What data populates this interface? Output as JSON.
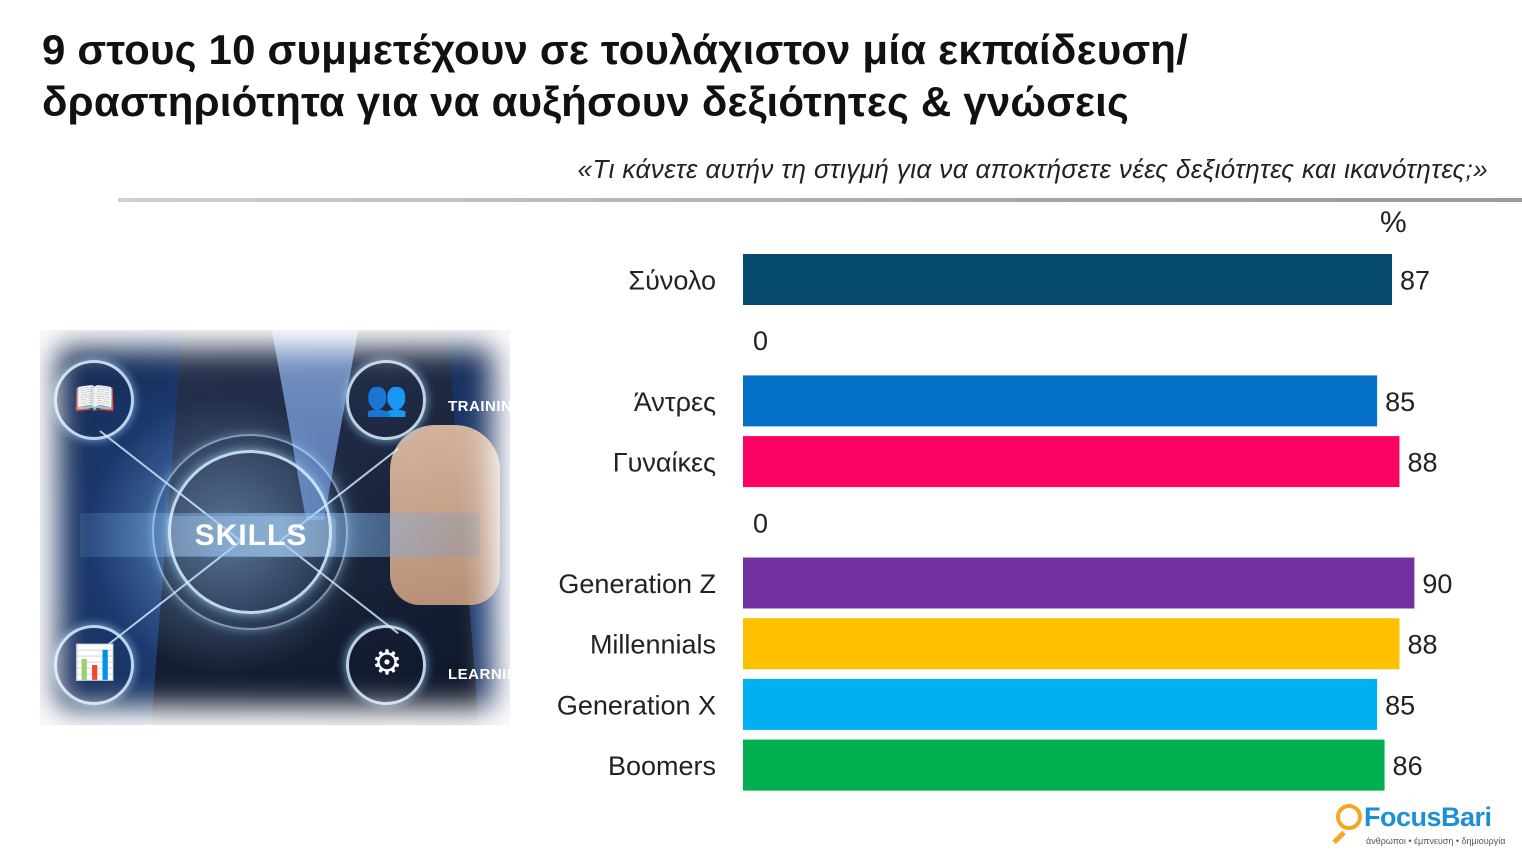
{
  "header": {
    "title_line1": "9 στους 10 συμμετέχουν σε τουλάχιστον μία εκπαίδευση/",
    "title_line2": "δραστηριότητα για να αυξήσουν δεξιότητες & γνώσεις",
    "subtitle": "«Τι κάνετε αυτήν τη στιγμή για να αποκτήσετε νέες δεξιότητες και ικανότητες;»"
  },
  "illustration": {
    "skills_label": "SKILLS",
    "training_tag": "TRAININ",
    "learning_tag": "LEARNIN",
    "icons": [
      "book-icon",
      "presentation-icon",
      "presenter-chart-icon",
      "brain-gears-icon"
    ]
  },
  "logo": {
    "brand": "FocusBari",
    "tagline": "άνθρωποι • έμπνευση • δημιουργία",
    "brand_color": "#1d8fd6",
    "accent_color": "#f5a623"
  },
  "chart_data": {
    "type": "bar",
    "orientation": "horizontal",
    "unit_label": "%",
    "xlim": [
      0,
      100
    ],
    "grid": false,
    "legend": "none",
    "rows": [
      {
        "label": "Σύνολο",
        "value": 87,
        "color": "#064a6e"
      },
      {
        "label": "",
        "value": 0,
        "color": "#000000"
      },
      {
        "label": "Άντρες",
        "value": 85,
        "color": "#0570c8"
      },
      {
        "label": "Γυναίκες",
        "value": 88,
        "color": "#fc0363"
      },
      {
        "label": "",
        "value": 0,
        "color": "#000000"
      },
      {
        "label": "Generation Z",
        "value": 90,
        "color": "#7030a0"
      },
      {
        "label": "Millennials",
        "value": 88,
        "color": "#ffc000"
      },
      {
        "label": "Generation X",
        "value": 85,
        "color": "#00b0f0"
      },
      {
        "label": "Boomers",
        "value": 86,
        "color": "#00b050"
      }
    ]
  }
}
